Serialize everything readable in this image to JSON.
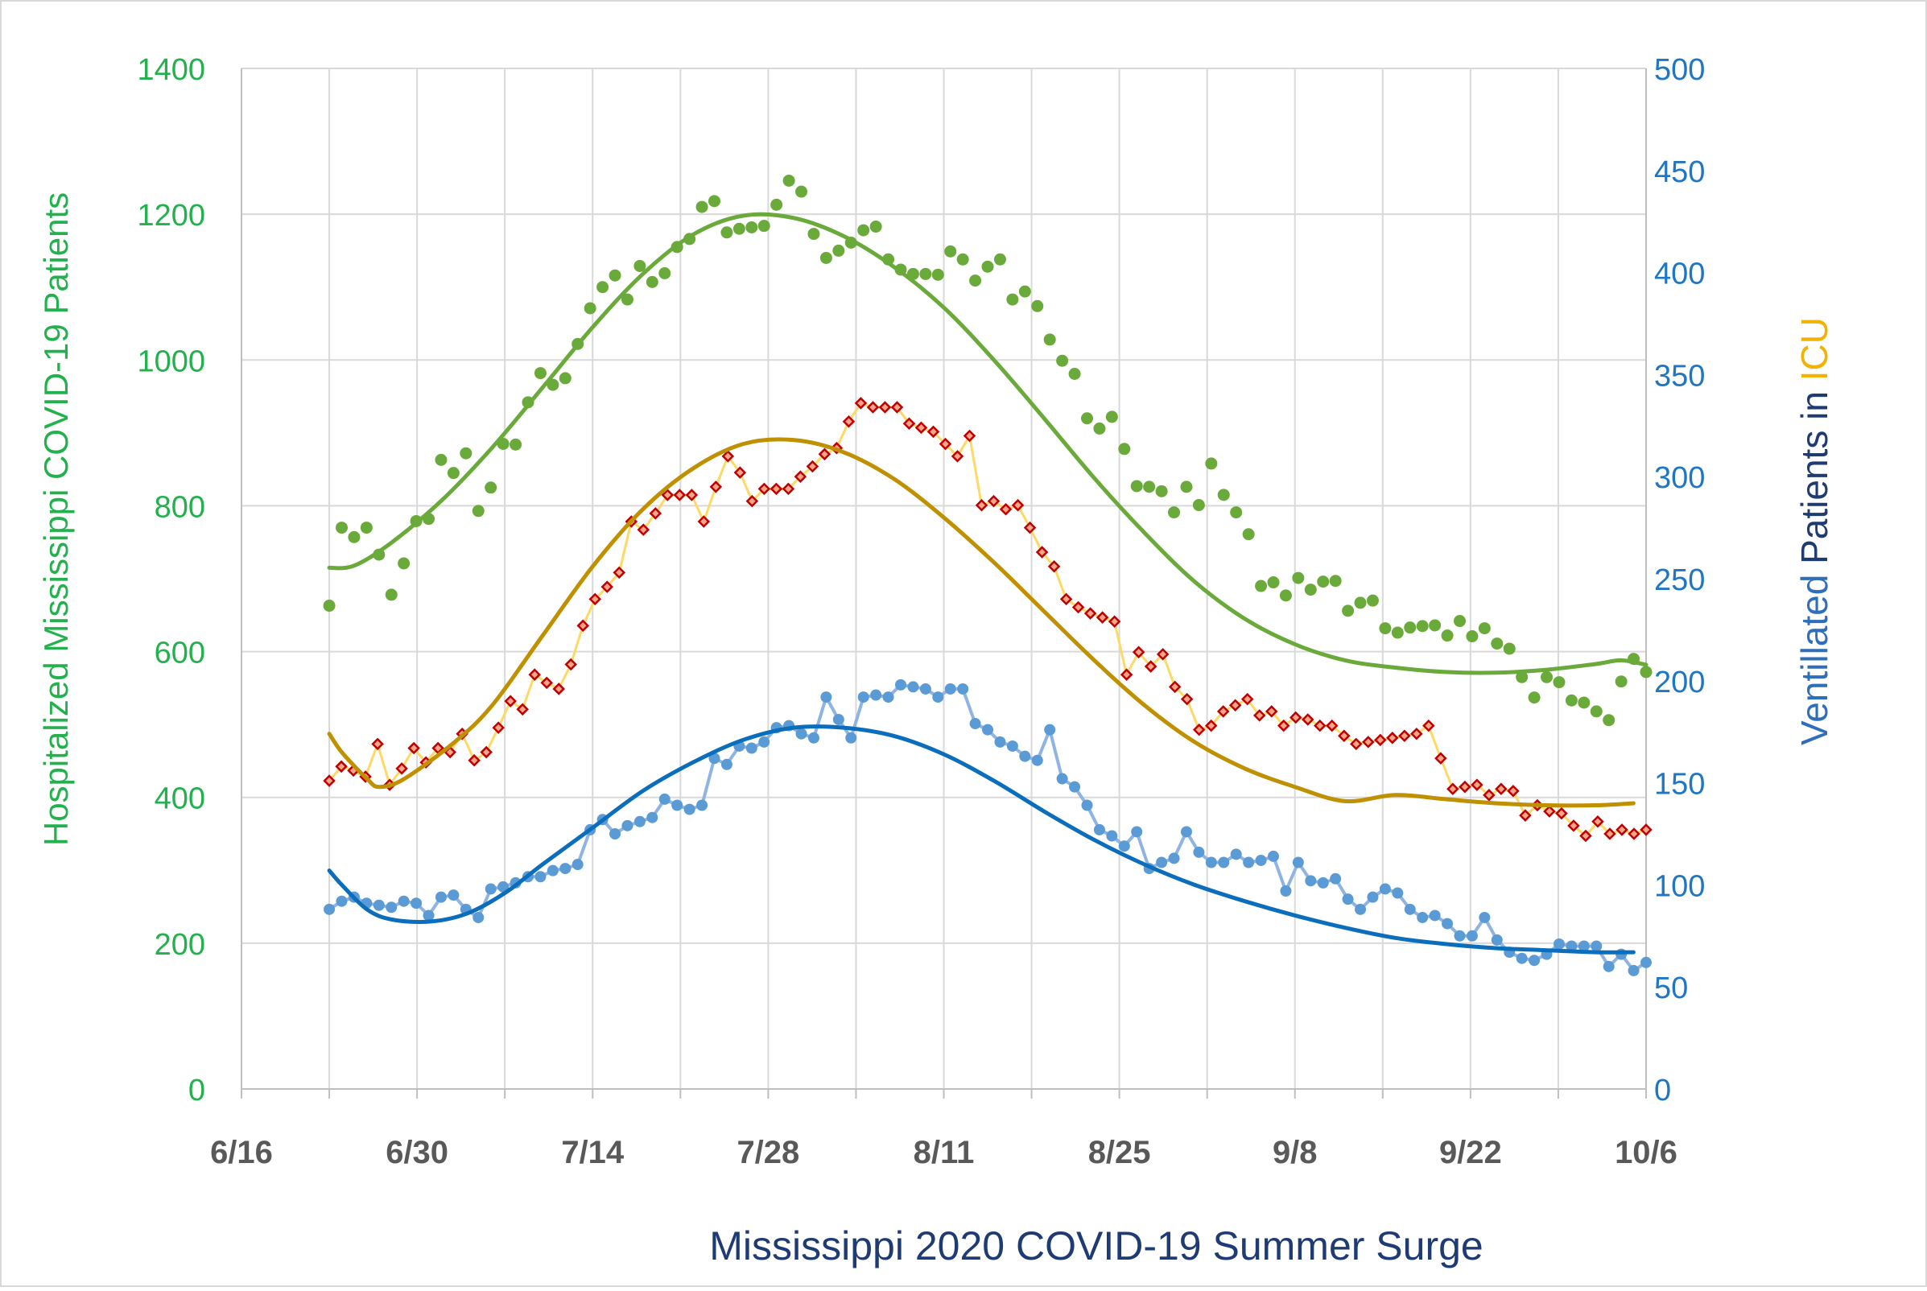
{
  "chart_data": {
    "type": "scatter",
    "title": "",
    "xlabel": "Mississippi 2020 COVID-19 Summer Surge",
    "ylabel_left": "Hospitalized Mississippi COVID-19 Patients",
    "ylabel_right_parts": [
      {
        "text": "Ventillated ",
        "color": "#2f6eba"
      },
      {
        "text": "Patients in ",
        "color": "#1f3b73"
      },
      {
        "text": "ICU",
        "color": "#f2b300"
      }
    ],
    "x_ticks": [
      "6/16",
      "6/30",
      "7/14",
      "7/28",
      "8/11",
      "8/25",
      "9/8",
      "9/22",
      "10/6"
    ],
    "x_range_days": [
      0,
      112
    ],
    "ylim_left": [
      0,
      1400
    ],
    "ylim_right": [
      0,
      500
    ],
    "y_ticks_left": [
      0,
      200,
      400,
      600,
      800,
      1000,
      1200,
      1400
    ],
    "y_ticks_right": [
      0,
      50,
      100,
      150,
      200,
      250,
      300,
      350,
      400,
      450,
      500
    ],
    "colors": {
      "left_axis": "#22b14c",
      "right_axis": "#1f76c2",
      "x_tick": "#595959",
      "xlabel": "#1f3b73",
      "grid": "#d9d9d9",
      "hospital_points": "#6aaa3a",
      "hospital_trend": "#6aaa3a",
      "icu_marker_edge": "#c00000",
      "icu_marker_fill": "#f4a58a",
      "icu_line": "#ffd966",
      "icu_trend": "#bf9000",
      "vent_line": "#8fb4e3",
      "vent_points": "#5b9bd5",
      "vent_trend": "#0a6ebd"
    },
    "x_start_day": 7,
    "series": [
      {
        "name": "Hospitalized",
        "axis": "left",
        "style": "points",
        "values": [
          663,
          770,
          757,
          770,
          733,
          678,
          721,
          779,
          782,
          863,
          845,
          872,
          793,
          825,
          885,
          884,
          942,
          982,
          966,
          975,
          1022,
          1071,
          1100,
          1116,
          1083,
          1129,
          1107,
          1119,
          1155,
          1166,
          1210,
          1218,
          1175,
          1180,
          1182,
          1184,
          1213,
          1246,
          1231,
          1173,
          1140,
          1150,
          1161,
          1178,
          1183,
          1138,
          1124,
          1118,
          1118,
          1117,
          1149,
          1138,
          1109,
          1128,
          1138,
          1083,
          1094,
          1074,
          1028,
          999,
          981,
          920,
          906,
          922,
          878,
          827,
          826,
          820,
          791,
          826,
          801,
          858,
          815,
          791,
          761,
          690,
          695,
          677,
          701,
          685,
          696,
          697,
          656,
          667,
          670,
          632,
          626,
          633,
          635,
          636,
          622,
          642,
          621,
          632,
          611,
          604,
          565,
          537,
          565,
          558,
          533,
          530,
          518,
          506,
          559,
          590,
          572
        ]
      },
      {
        "name": "ICU",
        "axis": "right",
        "style": "line-markers",
        "values": [
          151,
          158,
          156,
          153,
          169,
          149,
          157,
          167,
          160,
          167,
          165,
          174,
          161,
          165,
          177,
          190,
          186,
          203,
          199,
          196,
          208,
          227,
          240,
          246,
          253,
          278,
          274,
          282,
          291,
          291,
          291,
          278,
          295,
          310,
          302,
          288,
          294,
          294,
          294,
          300,
          305,
          311,
          314,
          327,
          336,
          334,
          334,
          334,
          326,
          324,
          322,
          316,
          310,
          320,
          286,
          288,
          284,
          286,
          275,
          263,
          256,
          240,
          236,
          233,
          231,
          229,
          203,
          214,
          207,
          213,
          197,
          191,
          176,
          178,
          185,
          188,
          191,
          183,
          185,
          178,
          182,
          181,
          178,
          178,
          173,
          169,
          170,
          171,
          172,
          173,
          174,
          178,
          162,
          147,
          148,
          149,
          144,
          147,
          146,
          134,
          139,
          136,
          135,
          129,
          124,
          131,
          125,
          127,
          125,
          127
        ]
      },
      {
        "name": "Ventilated",
        "axis": "right",
        "style": "line-points",
        "values": [
          88,
          92,
          94,
          91,
          90,
          89,
          92,
          91,
          85,
          94,
          95,
          88,
          84,
          98,
          99,
          101,
          104,
          104,
          107,
          108,
          110,
          127,
          132,
          125,
          129,
          131,
          133,
          142,
          139,
          137,
          139,
          162,
          159,
          168,
          167,
          170,
          177,
          178,
          174,
          172,
          192,
          181,
          172,
          192,
          193,
          192,
          198,
          197,
          196,
          192,
          196,
          196,
          179,
          176,
          170,
          168,
          163,
          161,
          176,
          152,
          148,
          139,
          127,
          124,
          119,
          126,
          108,
          111,
          113,
          126,
          116,
          111,
          111,
          115,
          111,
          112,
          114,
          97,
          111,
          102,
          101,
          103,
          93,
          88,
          94,
          98,
          96,
          88,
          84,
          85,
          81,
          75,
          75,
          84,
          73,
          67,
          64,
          63,
          66,
          71,
          70,
          70,
          70,
          60,
          66,
          58,
          62
        ]
      },
      {
        "name": "Hospitalized trend",
        "axis": "left",
        "style": "trend",
        "trend_points": [
          [
            7,
            715
          ],
          [
            9,
            718
          ],
          [
            12,
            750
          ],
          [
            16,
            808
          ],
          [
            20,
            880
          ],
          [
            24,
            962
          ],
          [
            28,
            1045
          ],
          [
            32,
            1118
          ],
          [
            36,
            1172
          ],
          [
            40,
            1198
          ],
          [
            44,
            1195
          ],
          [
            48,
            1170
          ],
          [
            52,
            1128
          ],
          [
            56,
            1072
          ],
          [
            60,
            1000
          ],
          [
            64,
            920
          ],
          [
            68,
            838
          ],
          [
            72,
            763
          ],
          [
            76,
            696
          ],
          [
            80,
            645
          ],
          [
            84,
            610
          ],
          [
            88,
            588
          ],
          [
            92,
            578
          ],
          [
            96,
            572
          ],
          [
            100,
            571
          ],
          [
            104,
            575
          ],
          [
            108,
            583
          ],
          [
            110,
            588
          ],
          [
            112,
            582
          ]
        ]
      },
      {
        "name": "ICU trend",
        "axis": "right",
        "style": "trend",
        "trend_points": [
          [
            7,
            174
          ],
          [
            8,
            165
          ],
          [
            10,
            152
          ],
          [
            11,
            148
          ],
          [
            13,
            152
          ],
          [
            17,
            170
          ],
          [
            20,
            188
          ],
          [
            24,
            222
          ],
          [
            28,
            256
          ],
          [
            32,
            284
          ],
          [
            36,
            304
          ],
          [
            40,
            316
          ],
          [
            44,
            318
          ],
          [
            48,
            312
          ],
          [
            52,
            299
          ],
          [
            56,
            280
          ],
          [
            60,
            258
          ],
          [
            64,
            234
          ],
          [
            68,
            210
          ],
          [
            72,
            188
          ],
          [
            76,
            170
          ],
          [
            80,
            157
          ],
          [
            84,
            148
          ],
          [
            88,
            141
          ],
          [
            92,
            144
          ],
          [
            96,
            142
          ],
          [
            100,
            140
          ],
          [
            104,
            139
          ],
          [
            108,
            139
          ],
          [
            111,
            140
          ]
        ]
      },
      {
        "name": "Ventilated trend",
        "axis": "right",
        "style": "trend",
        "trend_points": [
          [
            7,
            107
          ],
          [
            8,
            100
          ],
          [
            10,
            88
          ],
          [
            12,
            83
          ],
          [
            15,
            82
          ],
          [
            18,
            86
          ],
          [
            21,
            96
          ],
          [
            24,
            110
          ],
          [
            28,
            128
          ],
          [
            32,
            146
          ],
          [
            36,
            160
          ],
          [
            40,
            171
          ],
          [
            44,
            177
          ],
          [
            48,
            177
          ],
          [
            52,
            173
          ],
          [
            56,
            164
          ],
          [
            60,
            151
          ],
          [
            64,
            136
          ],
          [
            68,
            122
          ],
          [
            72,
            110
          ],
          [
            76,
            100
          ],
          [
            80,
            92
          ],
          [
            84,
            85
          ],
          [
            88,
            79
          ],
          [
            92,
            74
          ],
          [
            96,
            71
          ],
          [
            100,
            69
          ],
          [
            104,
            68
          ],
          [
            108,
            67
          ],
          [
            111,
            67
          ]
        ]
      }
    ]
  }
}
